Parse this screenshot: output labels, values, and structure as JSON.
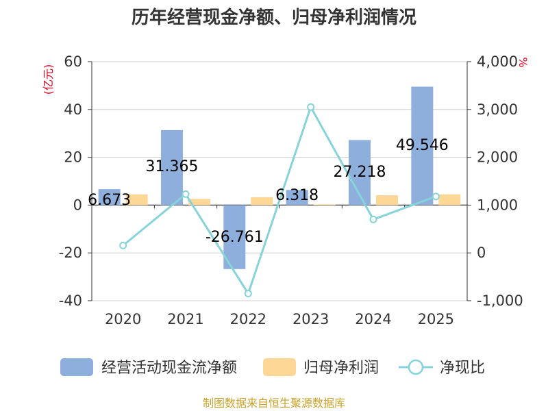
{
  "chart_data": {
    "type": "bar",
    "title": "历年经营现金净额、归母净利润情况",
    "categories": [
      "2020",
      "2021",
      "2022",
      "2023",
      "2024",
      "2025"
    ],
    "series": [
      {
        "name": "经营活动现金流净额",
        "type": "bar",
        "axis": "left",
        "color": "#8eafdc",
        "values": [
          6.673,
          31.365,
          -26.761,
          6.318,
          27.218,
          49.546
        ],
        "labels": [
          "6.673",
          "31.365",
          "-26.761",
          "6.318",
          "27.218",
          "49.546"
        ]
      },
      {
        "name": "归母净利润",
        "type": "bar",
        "axis": "left",
        "color": "#fdd795",
        "values": [
          4.5,
          2.6,
          3.3,
          0.3,
          4.1,
          4.5
        ]
      },
      {
        "name": "净现比",
        "type": "line",
        "axis": "right",
        "color": "#86d3d9",
        "values": [
          155,
          1230,
          -850,
          3050,
          700,
          1180
        ]
      }
    ],
    "y_left": {
      "unit": "(亿元)",
      "ylim": [
        -40,
        60
      ],
      "ticks": [
        "-40",
        "-20",
        "0",
        "20",
        "40",
        "60"
      ],
      "tick_values": [
        -40,
        -20,
        0,
        20,
        40,
        60
      ]
    },
    "y_right": {
      "unit": "%",
      "ylim": [
        -1000,
        4000
      ],
      "ticks": [
        "-1,000",
        "0",
        "1,000",
        "2,000",
        "3,000",
        "4,000"
      ],
      "tick_values": [
        -1000,
        0,
        1000,
        2000,
        3000,
        4000
      ]
    },
    "grid": true,
    "legend_position": "bottom"
  },
  "source": "制图数据来自恒生聚源数据库"
}
